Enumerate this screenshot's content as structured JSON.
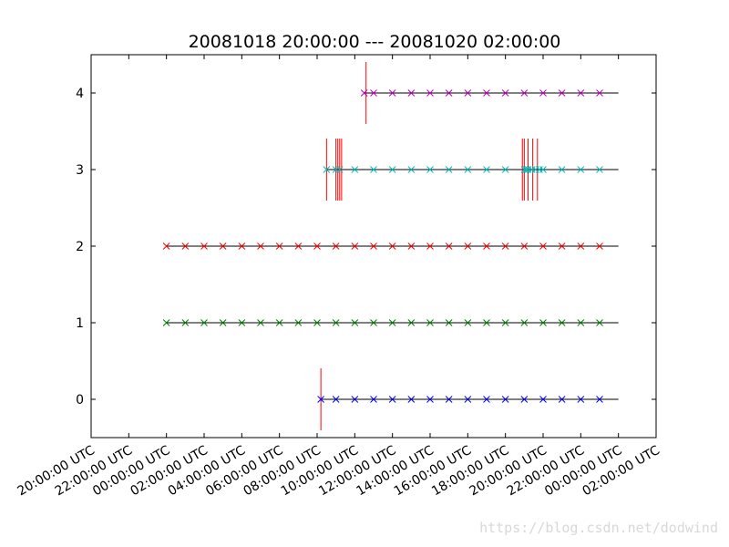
{
  "chart_data": {
    "type": "scatter",
    "title": "20081018 20:00:00 --- 20081020 02:00:00",
    "xlabel": "",
    "ylabel": "",
    "x_unit": "hours since 2008-10-18 20:00:00 UTC",
    "xlim": [
      0,
      30
    ],
    "ylim": [
      -0.5,
      4.5
    ],
    "grid": false,
    "x_tick_values": [
      0,
      2,
      4,
      6,
      8,
      10,
      12,
      14,
      16,
      18,
      20,
      22,
      24,
      26,
      28,
      30
    ],
    "x_tick_labels": [
      "20:00:00 UTC",
      "22:00:00 UTC",
      "00:00:00 UTC",
      "02:00:00 UTC",
      "04:00:00 UTC",
      "06:00:00 UTC",
      "08:00:00 UTC",
      "10:00:00 UTC",
      "12:00:00 UTC",
      "14:00:00 UTC",
      "16:00:00 UTC",
      "18:00:00 UTC",
      "20:00:00 UTC",
      "22:00:00 UTC",
      "00:00:00 UTC",
      "02:00:00 UTC"
    ],
    "y_tick_values": [
      0,
      1,
      2,
      3,
      4
    ],
    "y_tick_labels": [
      "0",
      "1",
      "2",
      "3",
      "4"
    ],
    "series": [
      {
        "y": 0,
        "color": "#0000ff",
        "line": [
          12.2,
          28
        ],
        "x": [
          12.2,
          13.0,
          14.0,
          15.0,
          16.0,
          17.0,
          18.0,
          19.0,
          20.0,
          21.0,
          22.0,
          23.0,
          24.0,
          25.0,
          26.0,
          27.0
        ],
        "events": [
          12.2
        ]
      },
      {
        "y": 1,
        "color": "#008000",
        "line": [
          4,
          28
        ],
        "x": [
          4,
          5,
          6,
          7,
          8,
          9,
          10,
          11,
          12,
          13,
          14,
          15,
          16,
          17,
          18,
          19,
          20,
          21,
          22,
          23,
          24,
          25,
          26,
          27
        ],
        "events": []
      },
      {
        "y": 2,
        "color": "#ff0000",
        "line": [
          4,
          28
        ],
        "x": [
          4,
          5,
          6,
          7,
          8,
          9,
          10,
          11,
          12,
          13,
          14,
          15,
          16,
          17,
          18,
          19,
          20,
          21,
          22,
          23,
          24,
          25,
          26,
          27
        ],
        "events": []
      },
      {
        "y": 3,
        "color": "#00bfbf",
        "line": [
          12.5,
          28
        ],
        "x": [
          12.5,
          13.0,
          13.2,
          14.0,
          15.0,
          16.0,
          17.0,
          18.0,
          19.0,
          20.0,
          21.0,
          22.0,
          23.0,
          23.1,
          23.2,
          23.4,
          23.6,
          23.8,
          24.0,
          25.0,
          26.0,
          27.0
        ],
        "events": [
          12.5,
          13.0,
          13.1,
          13.2,
          13.3,
          22.9,
          23.0,
          23.2,
          23.45,
          23.7
        ]
      },
      {
        "y": 4,
        "color": "#bf00bf",
        "line": [
          14.5,
          28
        ],
        "x": [
          14.5,
          15.0,
          16.0,
          17.0,
          18.0,
          19.0,
          20.0,
          21.0,
          22.0,
          23.0,
          24.0,
          25.0,
          26.0,
          27.0
        ],
        "events": [
          14.6
        ]
      }
    ]
  },
  "watermark": "https://blog.csdn.net/dodwind"
}
